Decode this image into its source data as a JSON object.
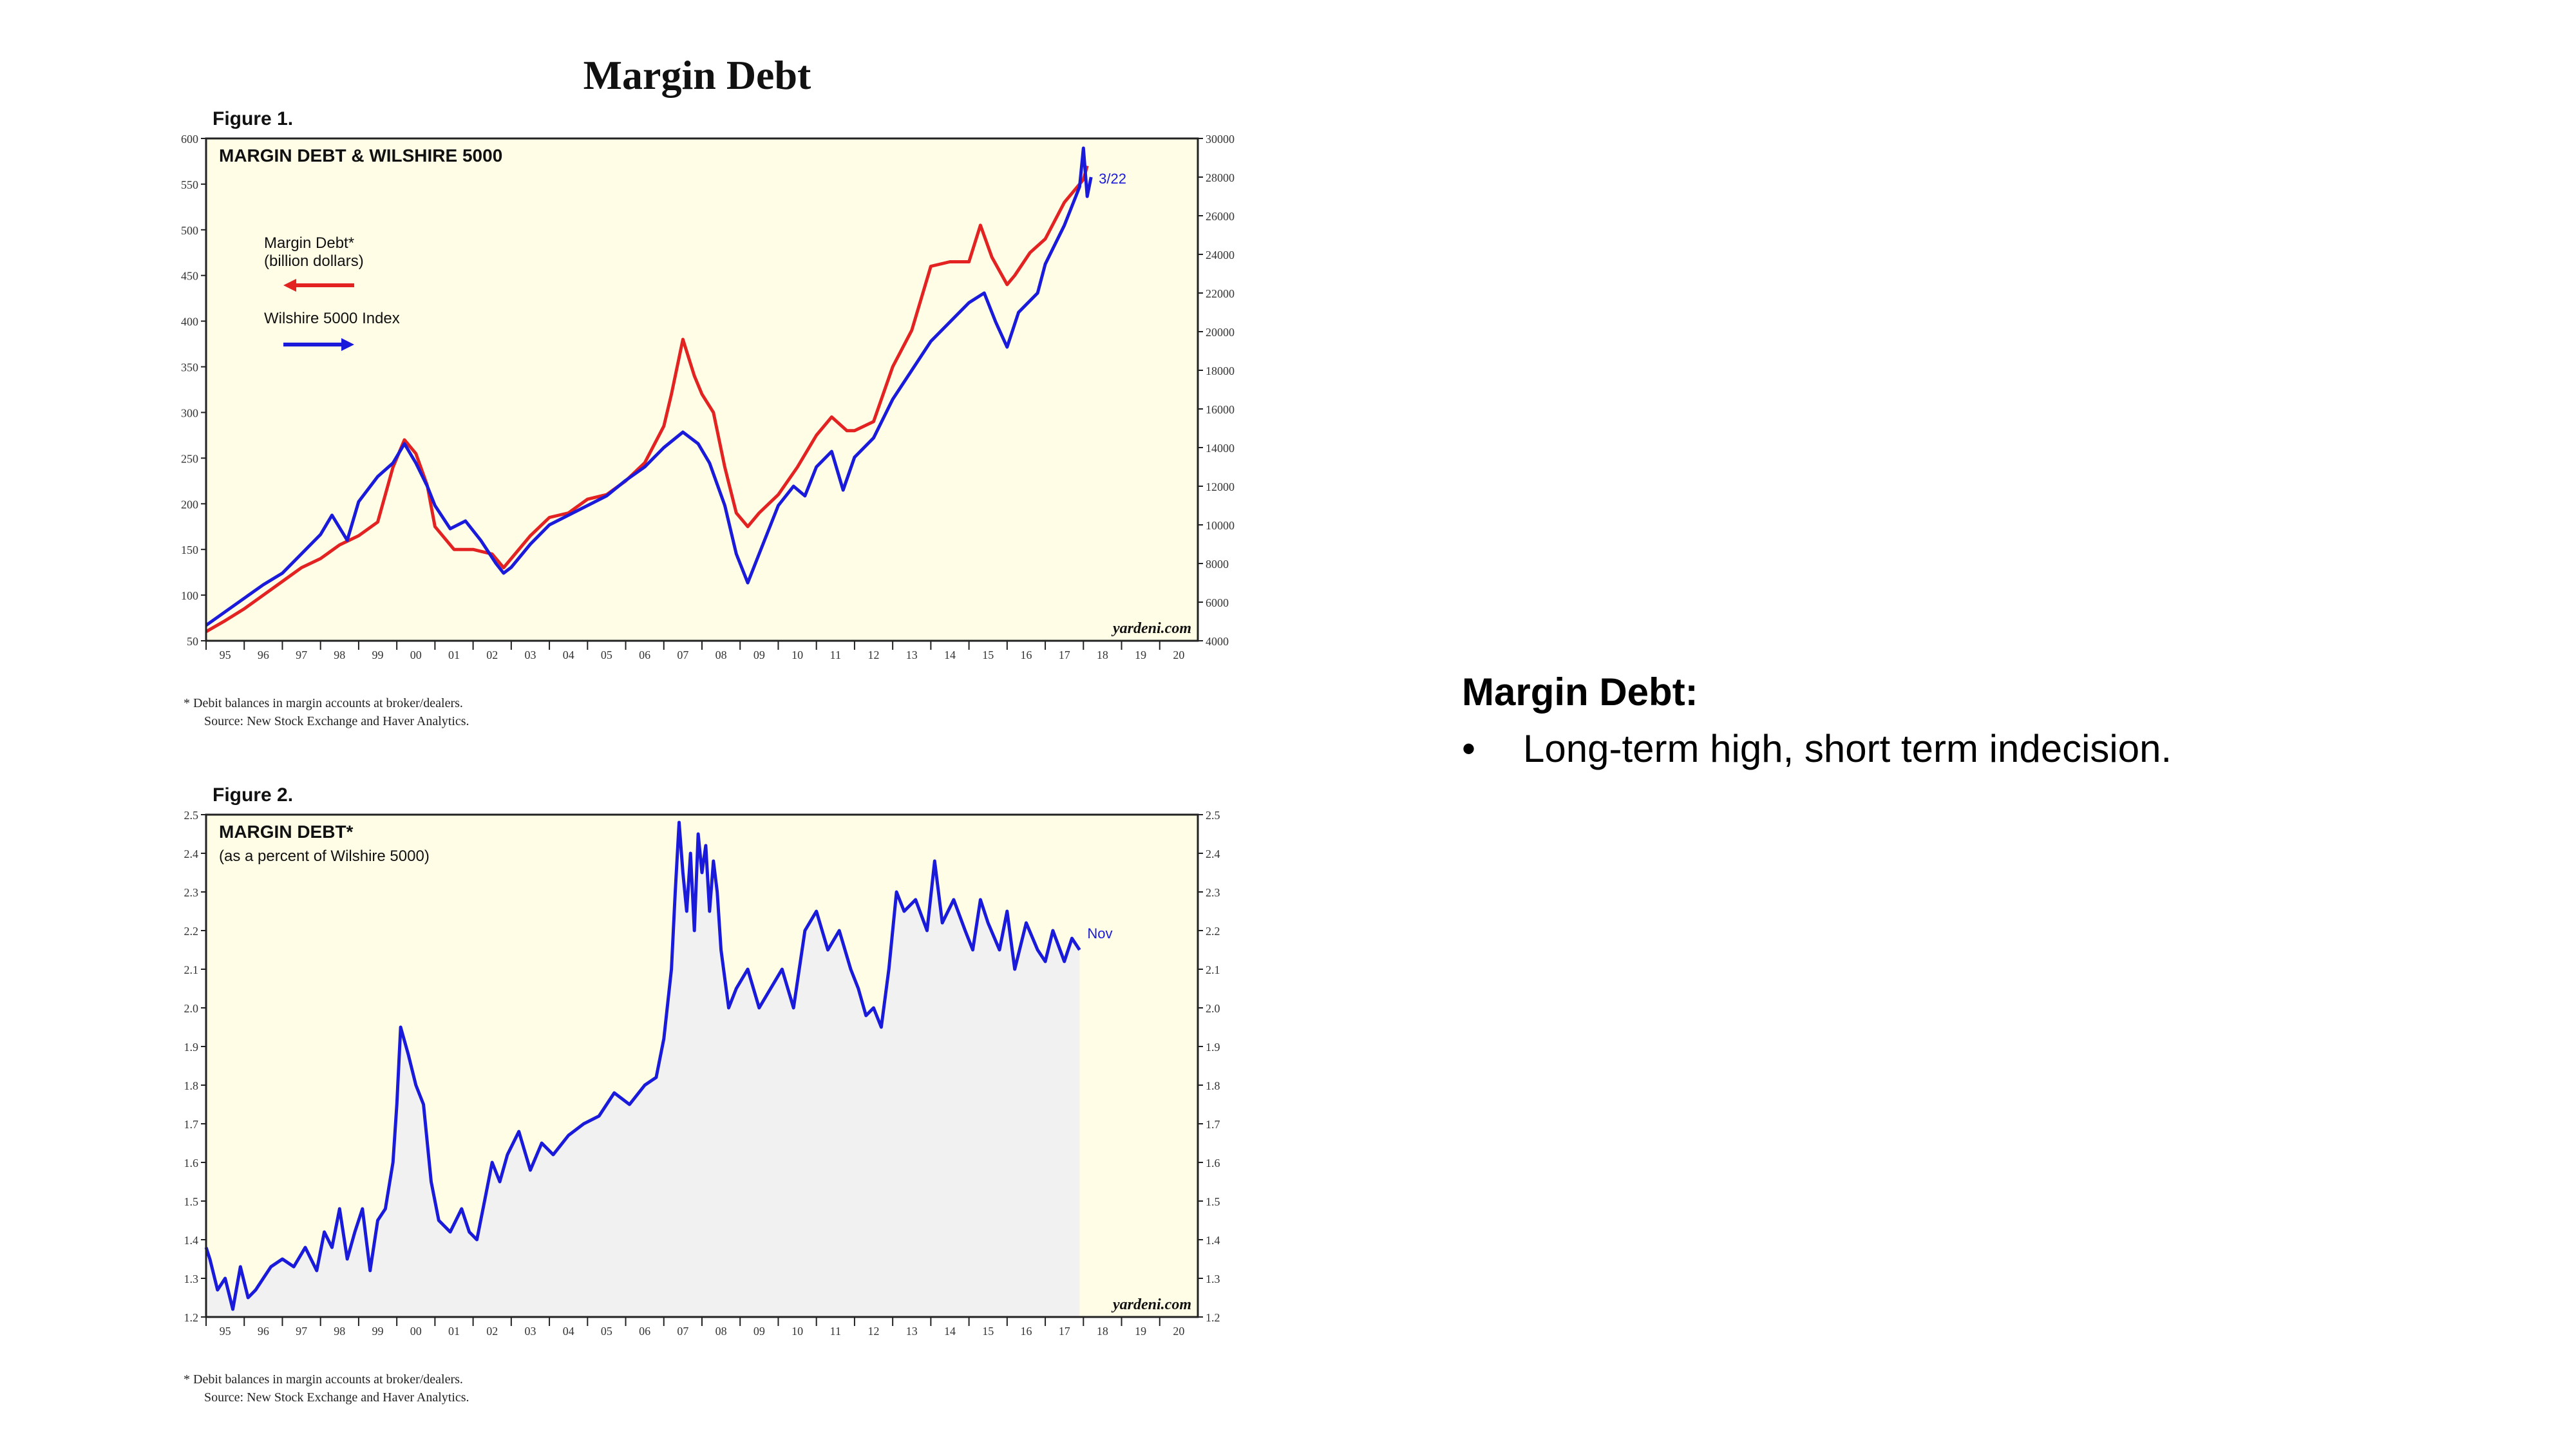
{
  "slide": {
    "title": "Margin Debt",
    "bullet_heading": "Margin Debt:",
    "bullets": [
      "Long-term high, short term indecision."
    ]
  },
  "figure1": {
    "label": "Figure 1.",
    "footnote_line1": "*  Debit balances in margin accounts at broker/dealers.",
    "footnote_line2": "Source: New Stock Exchange and Haver Analytics."
  },
  "figure2": {
    "label": "Figure 2.",
    "footnote_line1": "*  Debit balances in margin accounts at broker/dealers.",
    "footnote_line2": "Source: New Stock Exchange and Haver Analytics."
  },
  "chart_data": [
    {
      "type": "line",
      "title": "MARGIN DEBT & WILSHIRE 5000",
      "background": "#fffde6",
      "watermark": "yardeni.com",
      "end_label": "3/22",
      "x_tick_labels": [
        "95",
        "96",
        "97",
        "98",
        "99",
        "00",
        "01",
        "02",
        "03",
        "04",
        "05",
        "06",
        "07",
        "08",
        "09",
        "10",
        "11",
        "12",
        "13",
        "14",
        "15",
        "16",
        "17",
        "18",
        "19",
        "20"
      ],
      "xlim": [
        1995.0,
        2021.0
      ],
      "y_left": {
        "ylim": [
          50,
          600
        ],
        "ticks": [
          50,
          100,
          150,
          200,
          250,
          300,
          350,
          400,
          450,
          500,
          550,
          600
        ]
      },
      "y_right": {
        "ylim": [
          4000,
          30000
        ],
        "ticks": [
          4000,
          6000,
          8000,
          10000,
          12000,
          14000,
          16000,
          18000,
          20000,
          22000,
          24000,
          26000,
          28000,
          30000
        ]
      },
      "legend": {
        "placement": "upper-left"
      },
      "series": [
        {
          "name": "Margin Debt*",
          "name_line2": "(billion dollars)",
          "axis": "left",
          "color": "#e32222",
          "x": [
            1995.0,
            1995.5,
            1996.0,
            1996.5,
            1997.0,
            1997.5,
            1998.0,
            1998.5,
            1999.0,
            1999.5,
            1999.9,
            2000.2,
            2000.5,
            2000.8,
            2001.0,
            2001.5,
            2002.0,
            2002.5,
            2002.8,
            2003.0,
            2003.5,
            2004.0,
            2004.5,
            2005.0,
            2005.5,
            2006.0,
            2006.5,
            2007.0,
            2007.2,
            2007.5,
            2007.8,
            2008.0,
            2008.3,
            2008.6,
            2008.9,
            2009.2,
            2009.5,
            2010.0,
            2010.5,
            2011.0,
            2011.4,
            2011.8,
            2012.0,
            2012.5,
            2013.0,
            2013.5,
            2014.0,
            2014.5,
            2015.0,
            2015.3,
            2015.6,
            2016.0,
            2016.2,
            2016.6,
            2017.0,
            2017.5,
            2018.0,
            2018.1
          ],
          "values": [
            60,
            72,
            85,
            100,
            115,
            130,
            140,
            155,
            165,
            180,
            240,
            270,
            255,
            220,
            175,
            150,
            150,
            145,
            130,
            140,
            165,
            185,
            190,
            205,
            210,
            225,
            245,
            285,
            320,
            380,
            340,
            320,
            300,
            240,
            190,
            175,
            190,
            210,
            240,
            275,
            295,
            280,
            280,
            290,
            350,
            390,
            460,
            465,
            465,
            505,
            470,
            440,
            450,
            475,
            490,
            530,
            555,
            570
          ]
        },
        {
          "name": "Wilshire 5000 Index",
          "axis": "right",
          "color": "#1a1adb",
          "x": [
            1995.0,
            1995.5,
            1996.0,
            1996.5,
            1997.0,
            1997.5,
            1998.0,
            1998.3,
            1998.7,
            1999.0,
            1999.5,
            1999.9,
            2000.2,
            2000.5,
            2000.8,
            2001.0,
            2001.4,
            2001.8,
            2002.2,
            2002.6,
            2002.8,
            2003.0,
            2003.5,
            2004.0,
            2004.5,
            2005.0,
            2005.5,
            2006.0,
            2006.5,
            2007.0,
            2007.5,
            2007.9,
            2008.2,
            2008.6,
            2008.9,
            2009.2,
            2009.5,
            2010.0,
            2010.4,
            2010.7,
            2011.0,
            2011.4,
            2011.7,
            2012.0,
            2012.5,
            2013.0,
            2013.5,
            2014.0,
            2014.5,
            2015.0,
            2015.4,
            2015.7,
            2016.0,
            2016.3,
            2016.8,
            2017.0,
            2017.5,
            2017.9,
            2018.0,
            2018.1,
            2018.2
          ],
          "values": [
            4800,
            5500,
            6200,
            6900,
            7500,
            8500,
            9500,
            10500,
            9200,
            11200,
            12500,
            13200,
            14200,
            13200,
            12000,
            11000,
            9800,
            10200,
            9200,
            8000,
            7500,
            7800,
            9000,
            10000,
            10500,
            11000,
            11500,
            12300,
            13000,
            14000,
            14800,
            14200,
            13200,
            11000,
            8500,
            7000,
            8500,
            11000,
            12000,
            11500,
            13000,
            13800,
            11800,
            13500,
            14500,
            16500,
            18000,
            19500,
            20500,
            21500,
            22000,
            20500,
            19200,
            21000,
            22000,
            23500,
            25500,
            27500,
            29500,
            27000,
            28000
          ]
        }
      ]
    },
    {
      "type": "area",
      "title": "MARGIN DEBT*",
      "subtitle": "(as a percent of Wilshire 5000)",
      "background": "#fffde6",
      "fill_color": "#f1f1f1",
      "watermark": "yardeni.com",
      "end_label": "Nov",
      "x_tick_labels": [
        "95",
        "96",
        "97",
        "98",
        "99",
        "00",
        "01",
        "02",
        "03",
        "04",
        "05",
        "06",
        "07",
        "08",
        "09",
        "10",
        "11",
        "12",
        "13",
        "14",
        "15",
        "16",
        "17",
        "18",
        "19",
        "20"
      ],
      "xlim": [
        1995.0,
        2021.0
      ],
      "ylim": [
        1.2,
        2.5
      ],
      "y_ticks": [
        1.2,
        1.3,
        1.4,
        1.5,
        1.6,
        1.7,
        1.8,
        1.9,
        2.0,
        2.1,
        2.2,
        2.3,
        2.4,
        2.5
      ],
      "series": [
        {
          "name": "",
          "color": "#1a1adb",
          "x": [
            1995.0,
            1995.1,
            1995.3,
            1995.5,
            1995.7,
            1995.9,
            1996.1,
            1996.3,
            1996.5,
            1996.7,
            1997.0,
            1997.3,
            1997.6,
            1997.9,
            1998.1,
            1998.3,
            1998.5,
            1998.7,
            1998.9,
            1999.1,
            1999.3,
            1999.5,
            1999.7,
            1999.9,
            2000.0,
            2000.1,
            2000.3,
            2000.5,
            2000.7,
            2000.9,
            2001.1,
            2001.4,
            2001.7,
            2001.9,
            2002.1,
            2002.3,
            2002.5,
            2002.7,
            2002.9,
            2003.2,
            2003.5,
            2003.8,
            2004.1,
            2004.5,
            2004.9,
            2005.3,
            2005.7,
            2006.1,
            2006.5,
            2006.8,
            2007.0,
            2007.2,
            2007.3,
            2007.4,
            2007.5,
            2007.6,
            2007.7,
            2007.8,
            2007.9,
            2008.0,
            2008.1,
            2008.2,
            2008.3,
            2008.4,
            2008.5,
            2008.7,
            2008.9,
            2009.2,
            2009.5,
            2009.8,
            2010.1,
            2010.4,
            2010.7,
            2011.0,
            2011.3,
            2011.6,
            2011.9,
            2012.1,
            2012.3,
            2012.5,
            2012.7,
            2012.9,
            2013.1,
            2013.3,
            2013.6,
            2013.9,
            2014.1,
            2014.3,
            2014.6,
            2014.9,
            2015.1,
            2015.3,
            2015.5,
            2015.8,
            2016.0,
            2016.2,
            2016.5,
            2016.8,
            2017.0,
            2017.2,
            2017.5,
            2017.7,
            2017.9
          ],
          "values": [
            1.38,
            1.35,
            1.27,
            1.3,
            1.22,
            1.33,
            1.25,
            1.27,
            1.3,
            1.33,
            1.35,
            1.33,
            1.38,
            1.32,
            1.42,
            1.38,
            1.48,
            1.35,
            1.42,
            1.48,
            1.32,
            1.45,
            1.48,
            1.6,
            1.75,
            1.95,
            1.88,
            1.8,
            1.75,
            1.55,
            1.45,
            1.42,
            1.48,
            1.42,
            1.4,
            1.5,
            1.6,
            1.55,
            1.62,
            1.68,
            1.58,
            1.65,
            1.62,
            1.67,
            1.7,
            1.72,
            1.78,
            1.75,
            1.8,
            1.82,
            1.92,
            2.1,
            2.3,
            2.48,
            2.35,
            2.25,
            2.4,
            2.2,
            2.45,
            2.35,
            2.42,
            2.25,
            2.38,
            2.3,
            2.15,
            2.0,
            2.05,
            2.1,
            2.0,
            2.05,
            2.1,
            2.0,
            2.2,
            2.25,
            2.15,
            2.2,
            2.1,
            2.05,
            1.98,
            2.0,
            1.95,
            2.1,
            2.3,
            2.25,
            2.28,
            2.2,
            2.38,
            2.22,
            2.28,
            2.2,
            2.15,
            2.28,
            2.22,
            2.15,
            2.25,
            2.1,
            2.22,
            2.15,
            2.12,
            2.2,
            2.12,
            2.18,
            2.15
          ]
        }
      ]
    }
  ]
}
